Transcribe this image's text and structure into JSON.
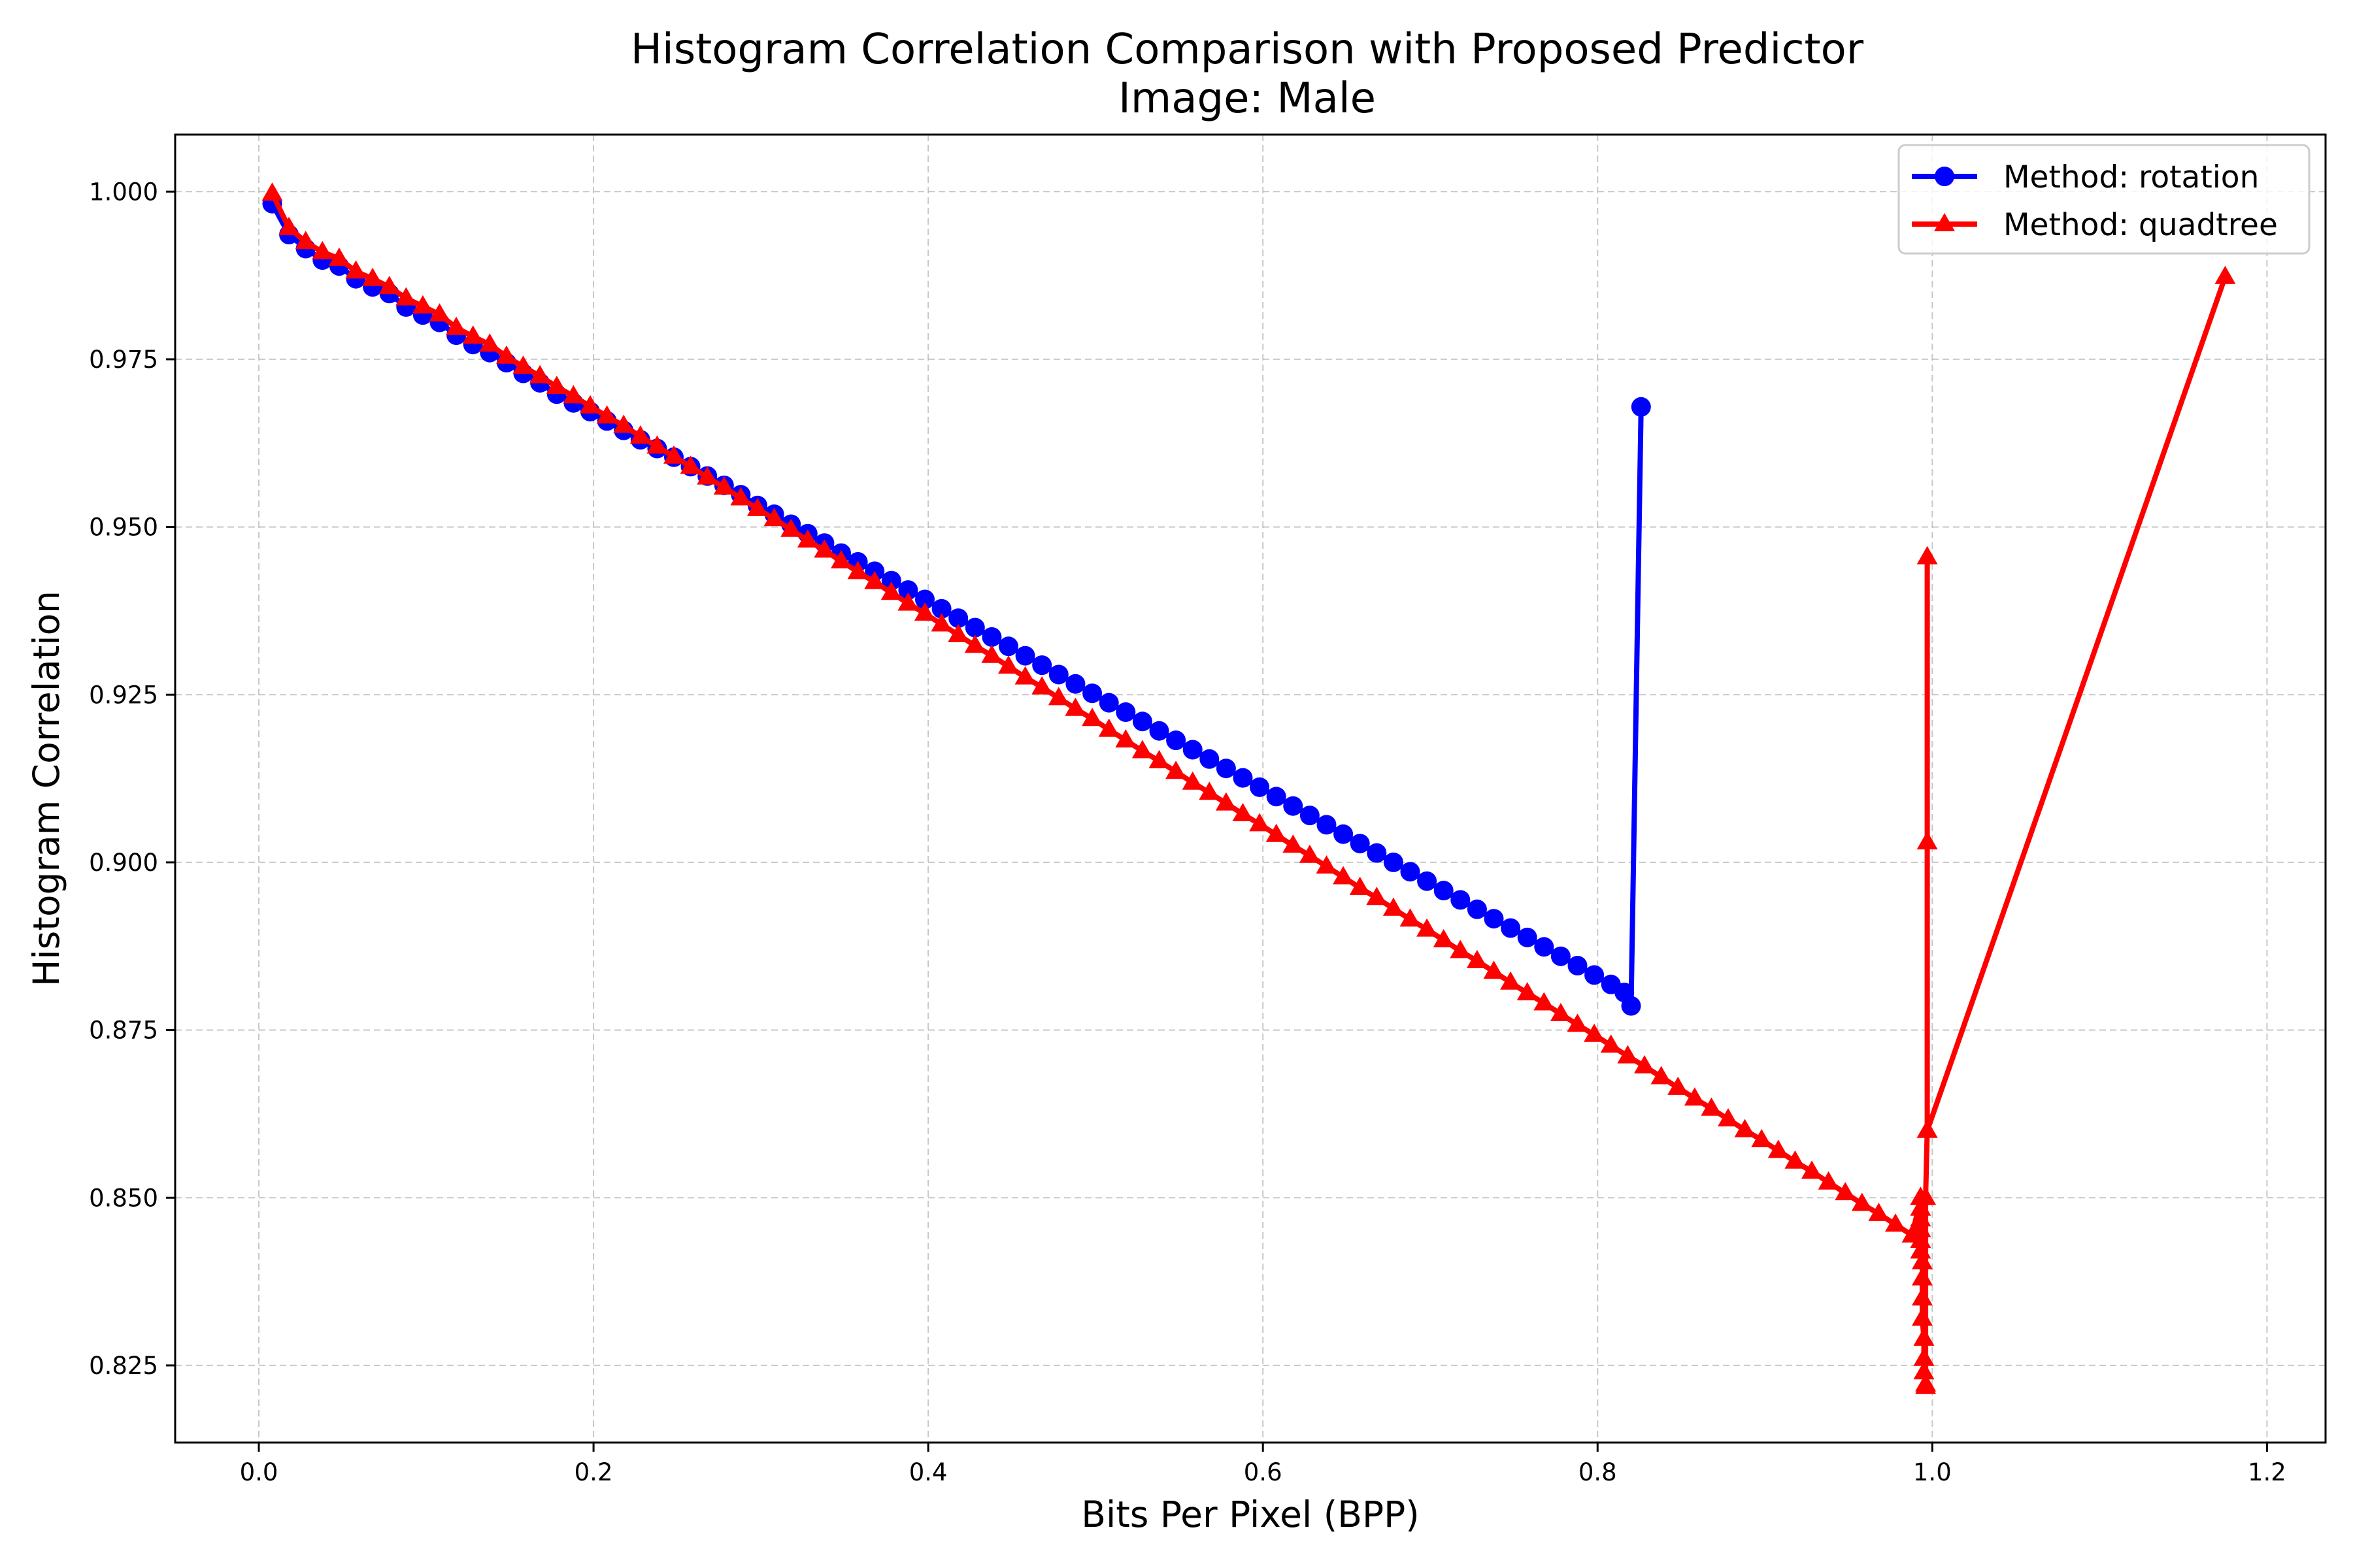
{
  "chart_data": {
    "type": "line",
    "title": "Histogram Correlation Comparison with Proposed Predictor",
    "subtitle": "Image: Male",
    "xlabel": "Bits Per Pixel (BPP)",
    "ylabel": "Histogram Correlation",
    "xlim": [
      -0.05,
      1.235
    ],
    "ylim": [
      0.8135,
      1.0085
    ],
    "xticks": [
      0.0,
      0.2,
      0.4,
      0.6,
      0.8,
      1.0,
      1.2
    ],
    "xtick_labels": [
      "0.0",
      "0.2",
      "0.4",
      "0.6",
      "0.8",
      "1.0",
      "1.2"
    ],
    "yticks": [
      0.825,
      0.85,
      0.875,
      0.9,
      0.925,
      0.95,
      0.975,
      1.0
    ],
    "ytick_labels": [
      "0.825",
      "0.850",
      "0.875",
      "0.900",
      "0.925",
      "0.950",
      "0.975",
      "1.000"
    ],
    "grid": true,
    "legend_position": "top-right",
    "series": [
      {
        "name": "Method: rotation",
        "color": "#0000ff",
        "marker": "circle",
        "points": [
          [
            0.008,
            0.9982
          ],
          [
            0.018,
            0.9936
          ],
          [
            0.028,
            0.9915
          ],
          [
            0.038,
            0.9898
          ],
          [
            0.048,
            0.9889
          ],
          [
            0.058,
            0.987
          ],
          [
            0.068,
            0.9858
          ],
          [
            0.078,
            0.9848
          ],
          [
            0.088,
            0.9828
          ],
          [
            0.098,
            0.9816
          ],
          [
            0.108,
            0.9805
          ],
          [
            0.118,
            0.9786
          ],
          [
            0.128,
            0.9772
          ],
          [
            0.138,
            0.976
          ],
          [
            0.148,
            0.9745
          ],
          [
            0.158,
            0.9729
          ],
          [
            0.168,
            0.9715
          ],
          [
            0.178,
            0.9698
          ],
          [
            0.188,
            0.9685
          ],
          [
            0.198,
            0.9672
          ],
          [
            0.208,
            0.9658
          ],
          [
            0.218,
            0.9644
          ],
          [
            0.228,
            0.963
          ],
          [
            0.238,
            0.9617
          ],
          [
            0.248,
            0.9604
          ],
          [
            0.258,
            0.959
          ],
          [
            0.268,
            0.9576
          ],
          [
            0.278,
            0.9562
          ],
          [
            0.288,
            0.9548
          ],
          [
            0.298,
            0.9532
          ],
          [
            0.308,
            0.9519
          ],
          [
            0.318,
            0.9504
          ],
          [
            0.328,
            0.949
          ],
          [
            0.338,
            0.9476
          ],
          [
            0.348,
            0.9461
          ],
          [
            0.358,
            0.9448
          ],
          [
            0.368,
            0.9434
          ],
          [
            0.378,
            0.942
          ],
          [
            0.388,
            0.9406
          ],
          [
            0.398,
            0.9392
          ],
          [
            0.408,
            0.9378
          ],
          [
            0.418,
            0.9364
          ],
          [
            0.428,
            0.935
          ],
          [
            0.438,
            0.9336
          ],
          [
            0.448,
            0.9322
          ],
          [
            0.458,
            0.9308
          ],
          [
            0.468,
            0.9294
          ],
          [
            0.478,
            0.928
          ],
          [
            0.488,
            0.9266
          ],
          [
            0.498,
            0.9252
          ],
          [
            0.508,
            0.9238
          ],
          [
            0.518,
            0.9224
          ],
          [
            0.528,
            0.921
          ],
          [
            0.538,
            0.9196
          ],
          [
            0.548,
            0.9182
          ],
          [
            0.558,
            0.9168
          ],
          [
            0.568,
            0.9154
          ],
          [
            0.578,
            0.914
          ],
          [
            0.588,
            0.9126
          ],
          [
            0.598,
            0.9112
          ],
          [
            0.608,
            0.9098
          ],
          [
            0.618,
            0.9084
          ],
          [
            0.628,
            0.907
          ],
          [
            0.638,
            0.9056
          ],
          [
            0.648,
            0.9042
          ],
          [
            0.658,
            0.9028
          ],
          [
            0.668,
            0.9014
          ],
          [
            0.678,
            0.9
          ],
          [
            0.688,
            0.8986
          ],
          [
            0.698,
            0.8972
          ],
          [
            0.708,
            0.8958
          ],
          [
            0.718,
            0.8944
          ],
          [
            0.728,
            0.893
          ],
          [
            0.738,
            0.8916
          ],
          [
            0.748,
            0.8902
          ],
          [
            0.758,
            0.8888
          ],
          [
            0.768,
            0.8874
          ],
          [
            0.778,
            0.886
          ],
          [
            0.788,
            0.8846
          ],
          [
            0.798,
            0.8832
          ],
          [
            0.808,
            0.8818
          ],
          [
            0.816,
            0.8806
          ],
          [
            0.82,
            0.8786
          ],
          [
            0.826,
            0.9679
          ]
        ]
      },
      {
        "name": "Method: quadtree",
        "color": "#ff0000",
        "marker": "triangle",
        "points": [
          [
            0.008,
            0.9997
          ],
          [
            0.018,
            0.9946
          ],
          [
            0.028,
            0.9925
          ],
          [
            0.038,
            0.991
          ],
          [
            0.048,
            0.99
          ],
          [
            0.058,
            0.9881
          ],
          [
            0.068,
            0.987
          ],
          [
            0.078,
            0.9858
          ],
          [
            0.088,
            0.9841
          ],
          [
            0.098,
            0.9829
          ],
          [
            0.108,
            0.9817
          ],
          [
            0.118,
            0.9797
          ],
          [
            0.128,
            0.9784
          ],
          [
            0.138,
            0.9772
          ],
          [
            0.148,
            0.9754
          ],
          [
            0.158,
            0.9739
          ],
          [
            0.168,
            0.9725
          ],
          [
            0.178,
            0.9709
          ],
          [
            0.188,
            0.9695
          ],
          [
            0.198,
            0.968
          ],
          [
            0.208,
            0.9665
          ],
          [
            0.218,
            0.9651
          ],
          [
            0.228,
            0.9635
          ],
          [
            0.238,
            0.962
          ],
          [
            0.248,
            0.9605
          ],
          [
            0.258,
            0.959
          ],
          [
            0.268,
            0.9574
          ],
          [
            0.278,
            0.9559
          ],
          [
            0.288,
            0.9543
          ],
          [
            0.298,
            0.9527
          ],
          [
            0.308,
            0.9512
          ],
          [
            0.318,
            0.9496
          ],
          [
            0.328,
            0.948
          ],
          [
            0.338,
            0.9465
          ],
          [
            0.348,
            0.9449
          ],
          [
            0.358,
            0.9433
          ],
          [
            0.368,
            0.9418
          ],
          [
            0.378,
            0.9402
          ],
          [
            0.388,
            0.9386
          ],
          [
            0.398,
            0.9371
          ],
          [
            0.408,
            0.9355
          ],
          [
            0.418,
            0.9339
          ],
          [
            0.428,
            0.9323
          ],
          [
            0.438,
            0.9308
          ],
          [
            0.448,
            0.9292
          ],
          [
            0.458,
            0.9276
          ],
          [
            0.468,
            0.9261
          ],
          [
            0.478,
            0.9245
          ],
          [
            0.488,
            0.9229
          ],
          [
            0.498,
            0.9214
          ],
          [
            0.508,
            0.9198
          ],
          [
            0.518,
            0.9182
          ],
          [
            0.528,
            0.9166
          ],
          [
            0.538,
            0.9151
          ],
          [
            0.548,
            0.9135
          ],
          [
            0.558,
            0.9119
          ],
          [
            0.568,
            0.9104
          ],
          [
            0.578,
            0.9088
          ],
          [
            0.588,
            0.9072
          ],
          [
            0.598,
            0.9057
          ],
          [
            0.608,
            0.9041
          ],
          [
            0.618,
            0.9025
          ],
          [
            0.628,
            0.901
          ],
          [
            0.638,
            0.8994
          ],
          [
            0.648,
            0.8978
          ],
          [
            0.658,
            0.8962
          ],
          [
            0.668,
            0.8947
          ],
          [
            0.678,
            0.8931
          ],
          [
            0.688,
            0.8915
          ],
          [
            0.698,
            0.89
          ],
          [
            0.708,
            0.8884
          ],
          [
            0.718,
            0.8868
          ],
          [
            0.728,
            0.8853
          ],
          [
            0.738,
            0.8837
          ],
          [
            0.748,
            0.8821
          ],
          [
            0.758,
            0.8805
          ],
          [
            0.768,
            0.879
          ],
          [
            0.778,
            0.8774
          ],
          [
            0.788,
            0.8758
          ],
          [
            0.798,
            0.8743
          ],
          [
            0.808,
            0.8727
          ],
          [
            0.818,
            0.8711
          ],
          [
            0.828,
            0.8696
          ],
          [
            0.838,
            0.868
          ],
          [
            0.848,
            0.8664
          ],
          [
            0.858,
            0.8648
          ],
          [
            0.868,
            0.8633
          ],
          [
            0.878,
            0.8617
          ],
          [
            0.888,
            0.8601
          ],
          [
            0.898,
            0.8586
          ],
          [
            0.908,
            0.857
          ],
          [
            0.918,
            0.8554
          ],
          [
            0.928,
            0.8539
          ],
          [
            0.938,
            0.8523
          ],
          [
            0.948,
            0.8507
          ],
          [
            0.958,
            0.8491
          ],
          [
            0.968,
            0.8476
          ],
          [
            0.978,
            0.846
          ],
          [
            0.988,
            0.8444
          ],
          [
            0.993,
            0.85
          ],
          [
            0.993,
            0.8484
          ],
          [
            0.993,
            0.8468
          ],
          [
            0.993,
            0.8452
          ],
          [
            0.993,
            0.8436
          ],
          [
            0.993,
            0.842
          ],
          [
            0.994,
            0.8404
          ],
          [
            0.994,
            0.838
          ],
          [
            0.994,
            0.835
          ],
          [
            0.994,
            0.832
          ],
          [
            0.995,
            0.829
          ],
          [
            0.995,
            0.826
          ],
          [
            0.995,
            0.824
          ],
          [
            0.996,
            0.8222
          ],
          [
            0.996,
            0.8218
          ],
          [
            0.996,
            0.85
          ],
          [
            0.997,
            0.86
          ],
          [
            0.997,
            0.903
          ],
          [
            0.997,
            0.9455
          ],
          [
            0.997,
            0.86
          ],
          [
            1.175,
            0.9873
          ]
        ]
      }
    ]
  }
}
